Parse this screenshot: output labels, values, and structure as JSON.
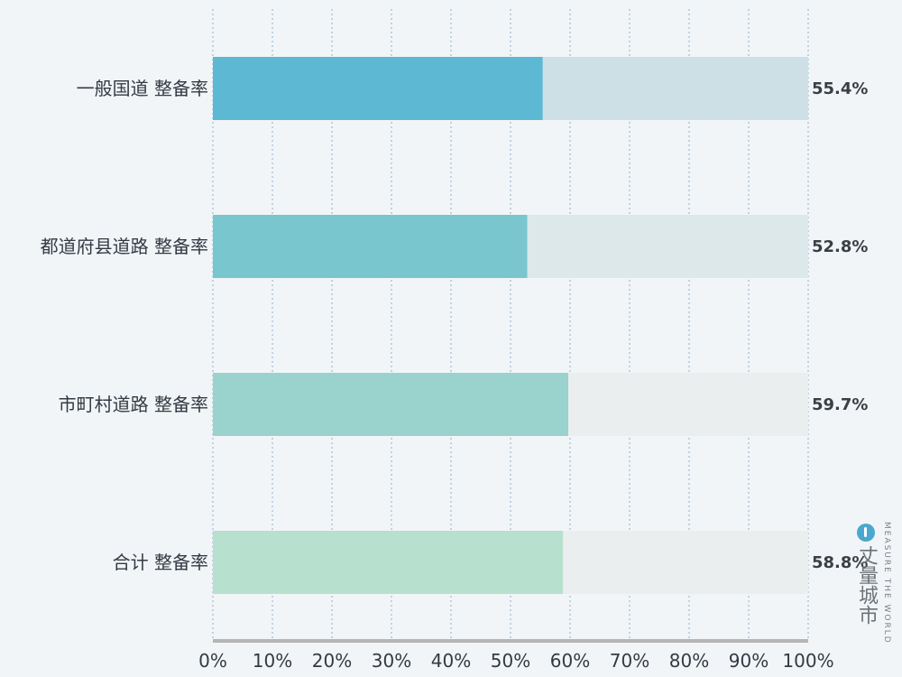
{
  "chart_data": {
    "type": "bar",
    "orientation": "horizontal",
    "categories": [
      "一般国道 整备率",
      "都道府县道路 整备率",
      "市町村道路 整备率",
      "合计 整备率"
    ],
    "values": [
      55.4,
      52.8,
      59.7,
      58.8
    ],
    "value_labels": [
      "55.4%",
      "52.8%",
      "59.7%",
      "58.8%"
    ],
    "xlim": [
      0,
      100
    ],
    "x_ticks": [
      "0%",
      "10%",
      "20%",
      "30%",
      "40%",
      "50%",
      "60%",
      "70%",
      "80%",
      "90%",
      "100%"
    ],
    "bar_colors": [
      "#5db9d3",
      "#79c6ce",
      "#9ad3cd",
      "#b8e0ce"
    ],
    "track_colors": [
      "#cde0e6",
      "#dce8ea",
      "#ebeeee",
      "#ebeeee"
    ],
    "grid": true
  },
  "watermark": {
    "text_cn": "丈量城市",
    "text_en": "MEASURE THE WORLD",
    "logo_icon": "logo-circle-icon"
  }
}
